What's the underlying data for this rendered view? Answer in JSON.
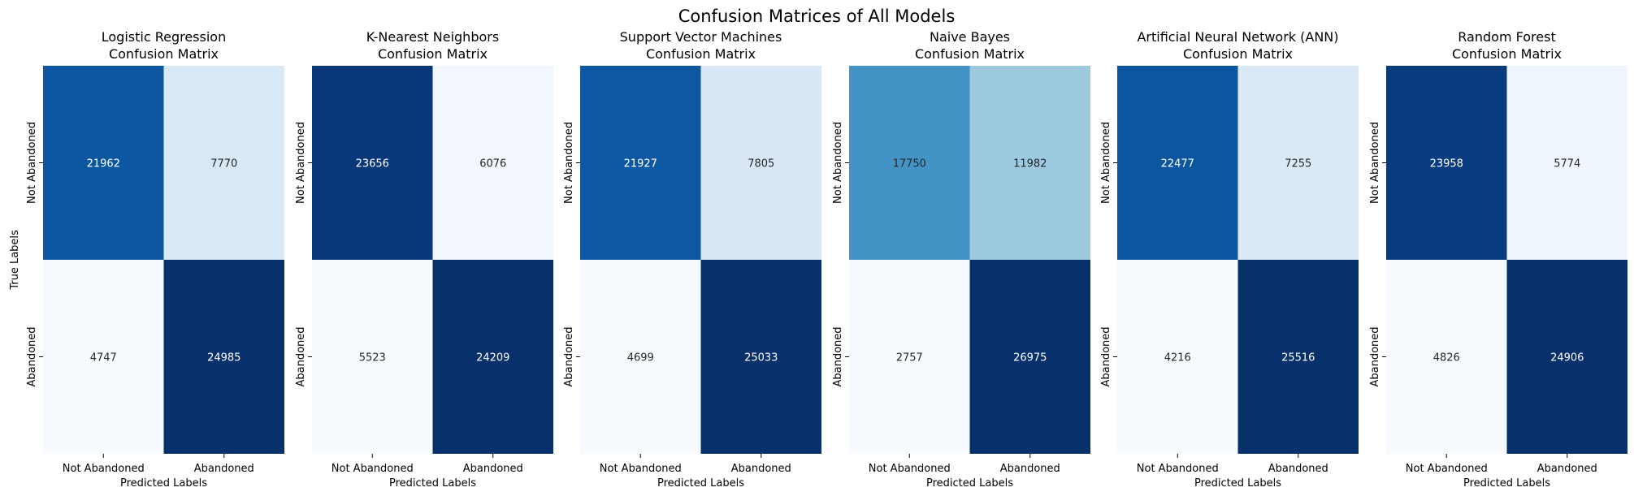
{
  "figure": {
    "suptitle": "Confusion Matrices of All Models"
  },
  "chart_data": {
    "type": "heatmap",
    "colormap": "Blues",
    "colorbar": false,
    "xlabel": "Predicted Labels",
    "ylabel": "True Labels",
    "x_tick_labels": [
      "Not Abandoned",
      "Abandoned"
    ],
    "y_tick_labels": [
      "Not Abandoned",
      "Abandoned"
    ],
    "panels": [
      {
        "title_line1": "Logistic Regression",
        "title_line2": "Confusion Matrix",
        "matrix": [
          [
            21962,
            7770
          ],
          [
            4747,
            24985
          ]
        ]
      },
      {
        "title_line1": "K-Nearest Neighbors",
        "title_line2": "Confusion Matrix",
        "matrix": [
          [
            23656,
            6076
          ],
          [
            5523,
            24209
          ]
        ]
      },
      {
        "title_line1": "Support Vector Machines",
        "title_line2": "Confusion Matrix",
        "matrix": [
          [
            21927,
            7805
          ],
          [
            4699,
            25033
          ]
        ]
      },
      {
        "title_line1": "Naive Bayes",
        "title_line2": "Confusion Matrix",
        "matrix": [
          [
            17750,
            11982
          ],
          [
            2757,
            26975
          ]
        ]
      },
      {
        "title_line1": "Artificial Neural Network (ANN)",
        "title_line2": "Confusion Matrix",
        "matrix": [
          [
            22477,
            7255
          ],
          [
            4216,
            25516
          ]
        ]
      },
      {
        "title_line1": "Random Forest",
        "title_line2": "Confusion Matrix",
        "matrix": [
          [
            23958,
            5774
          ],
          [
            4826,
            24906
          ]
        ]
      }
    ]
  }
}
